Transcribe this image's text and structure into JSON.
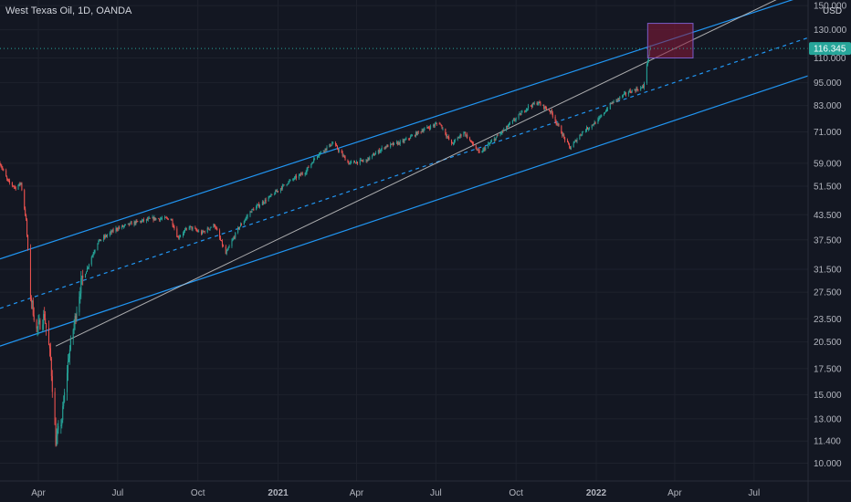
{
  "header": {
    "title": "West Texas Oil, 1D, OANDA"
  },
  "currency": "USD",
  "colors": {
    "background": "#131722",
    "grid": "#1e222d",
    "up": "#26a69a",
    "down": "#ef5350",
    "channel": "#2196f3",
    "trendline": "#c8c8c8",
    "zone": "#8b1a3a",
    "tag": "#26a69a"
  },
  "chart_data": {
    "type": "candlestick",
    "symbol": "West Texas Oil",
    "interval": "1D",
    "exchange": "OANDA",
    "x_range": [
      "2020-02-17",
      "2022-09-01"
    ],
    "y_range": [
      9.0,
      155.0
    ],
    "y_scale": "log",
    "grid": true,
    "last_price": 116.345,
    "y_ticks": [
      10.0,
      11.4,
      13.0,
      15.0,
      17.5,
      20.5,
      23.5,
      27.5,
      31.5,
      37.5,
      43.5,
      51.5,
      59.0,
      71.0,
      83.0,
      95.0,
      110.0,
      130.0,
      150.0
    ],
    "y_tick_labels": [
      "10.000",
      "11.400",
      "13.000",
      "15.000",
      "17.500",
      "20.500",
      "23.500",
      "27.500",
      "31.500",
      "37.500",
      "43.500",
      "51.500",
      "59.000",
      "71.000",
      "83.000",
      "95.000",
      "110.000",
      "130.000",
      "150.000"
    ],
    "x_ticks": [
      {
        "label": "Apr",
        "date": "2020-04-01"
      },
      {
        "label": "Jul",
        "date": "2020-07-01"
      },
      {
        "label": "Oct",
        "date": "2020-10-01"
      },
      {
        "label": "2021",
        "date": "2021-01-01"
      },
      {
        "label": "Apr",
        "date": "2021-04-01"
      },
      {
        "label": "Jul",
        "date": "2021-07-01"
      },
      {
        "label": "Oct",
        "date": "2021-10-01"
      },
      {
        "label": "2022",
        "date": "2022-01-01"
      },
      {
        "label": "Apr",
        "date": "2022-04-01"
      },
      {
        "label": "Jul",
        "date": "2022-07-01"
      }
    ],
    "price_path": [
      [
        "2020-02-17",
        59.0
      ],
      [
        "2020-02-26",
        53.0
      ],
      [
        "2020-03-06",
        51.0
      ],
      [
        "2020-03-12",
        52.5
      ],
      [
        "2020-03-18",
        42.0
      ],
      [
        "2020-03-23",
        27.0
      ],
      [
        "2020-03-30",
        22.0
      ],
      [
        "2020-04-08",
        24.0
      ],
      [
        "2020-04-15",
        18.5
      ],
      [
        "2020-04-21",
        11.4
      ],
      [
        "2020-04-28",
        13.0
      ],
      [
        "2020-05-06",
        19.0
      ],
      [
        "2020-05-20",
        29.0
      ],
      [
        "2020-06-08",
        37.0
      ],
      [
        "2020-06-29",
        40.0
      ],
      [
        "2020-07-20",
        41.5
      ],
      [
        "2020-08-10",
        42.5
      ],
      [
        "2020-08-31",
        42.5
      ],
      [
        "2020-09-08",
        38.0
      ],
      [
        "2020-09-21",
        40.5
      ],
      [
        "2020-10-05",
        39.0
      ],
      [
        "2020-10-20",
        41.0
      ],
      [
        "2020-11-02",
        34.5
      ],
      [
        "2020-11-16",
        40.0
      ],
      [
        "2020-12-01",
        44.5
      ],
      [
        "2020-12-21",
        48.0
      ],
      [
        "2021-01-11",
        52.5
      ],
      [
        "2021-02-01",
        56.0
      ],
      [
        "2021-02-15",
        62.0
      ],
      [
        "2021-03-05",
        66.5
      ],
      [
        "2021-03-23",
        59.0
      ],
      [
        "2021-04-12",
        60.0
      ],
      [
        "2021-05-03",
        65.0
      ],
      [
        "2021-05-24",
        67.0
      ],
      [
        "2021-06-14",
        71.5
      ],
      [
        "2021-07-05",
        75.0
      ],
      [
        "2021-07-19",
        66.0
      ],
      [
        "2021-08-02",
        71.0
      ],
      [
        "2021-08-20",
        62.5
      ],
      [
        "2021-09-06",
        68.0
      ],
      [
        "2021-09-27",
        75.5
      ],
      [
        "2021-10-15",
        82.5
      ],
      [
        "2021-10-26",
        84.5
      ],
      [
        "2021-11-10",
        80.0
      ],
      [
        "2021-11-26",
        68.0
      ],
      [
        "2021-12-02",
        64.5
      ],
      [
        "2021-12-16",
        71.0
      ],
      [
        "2022-01-03",
        76.0
      ],
      [
        "2022-01-18",
        84.0
      ],
      [
        "2022-02-07",
        90.0
      ],
      [
        "2022-02-24",
        92.5
      ],
      [
        "2022-03-02",
        112.0
      ],
      [
        "2022-03-04",
        116.345
      ]
    ],
    "channel_upper": [
      [
        "2020-02-17",
        33.5
      ],
      [
        "2022-09-01",
        160.0
      ]
    ],
    "channel_mid": [
      [
        "2020-02-17",
        25.0
      ],
      [
        "2022-09-01",
        124.0
      ]
    ],
    "channel_lower": [
      [
        "2020-02-17",
        20.0
      ],
      [
        "2022-09-01",
        99.0
      ]
    ],
    "trendline": [
      [
        "2020-04-21",
        20.0
      ],
      [
        "2022-09-01",
        170.0
      ]
    ],
    "zone": {
      "from": "2022-03-01",
      "to": "2022-04-22",
      "low": 110.0,
      "high": 135.0
    },
    "last_price_label": "116.345"
  }
}
